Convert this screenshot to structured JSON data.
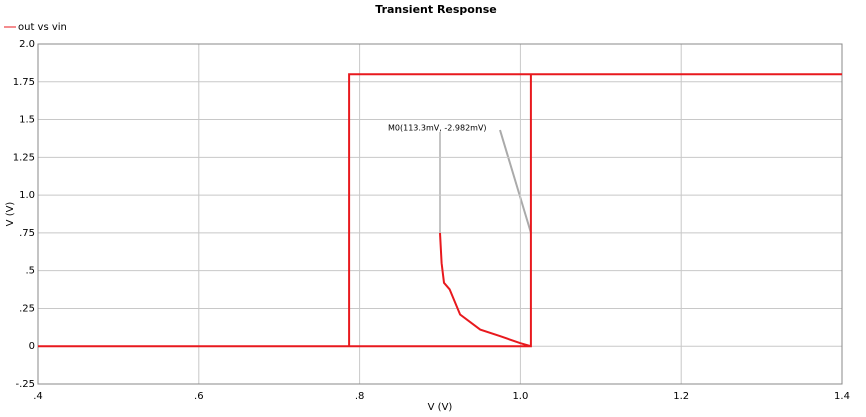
{
  "chart_data": {
    "type": "line",
    "title": "Transient Response",
    "xlabel": "V (V)",
    "ylabel": "V (V)",
    "xlim": [
      0.4,
      1.4
    ],
    "ylim": [
      -0.25,
      2.0
    ],
    "xticks": [
      {
        "value": 0.4,
        "label": ".4"
      },
      {
        "value": 0.6,
        "label": ".6"
      },
      {
        "value": 0.8,
        "label": ".8"
      },
      {
        "value": 1.0,
        "label": "1.0"
      },
      1.2,
      1.4
    ],
    "yticks": [
      {
        "value": -0.25,
        "label": "-.25"
      },
      0,
      {
        "value": 0.25,
        "label": ".25"
      },
      {
        "value": 0.5,
        "label": ".5"
      },
      {
        "value": 0.75,
        "label": ".75"
      },
      {
        "value": 1.0,
        "label": "1.0"
      },
      1.25,
      1.5,
      1.75,
      {
        "value": 2.0,
        "label": "2.0"
      }
    ],
    "grid": true,
    "legend": "top-left",
    "x": [
      0.4,
      1.013,
      1.013,
      1.4,
      null,
      0.787,
      0.787,
      1.013,
      null,
      0.9,
      0.902,
      0.905,
      0.912,
      0.925,
      0.95,
      0.975,
      1.0,
      1.013
    ],
    "series": [
      {
        "name": "out vs vin",
        "color": "#e8191e",
        "values": [
          0,
          0,
          1.8,
          1.8,
          null,
          0,
          1.8,
          1.8,
          null,
          0.75,
          0.55,
          0.42,
          0.377,
          0.21,
          0.11,
          0.066,
          0.02,
          0
        ]
      }
    ],
    "annotation": "M0(113.3mV, -2.982mV)"
  }
}
